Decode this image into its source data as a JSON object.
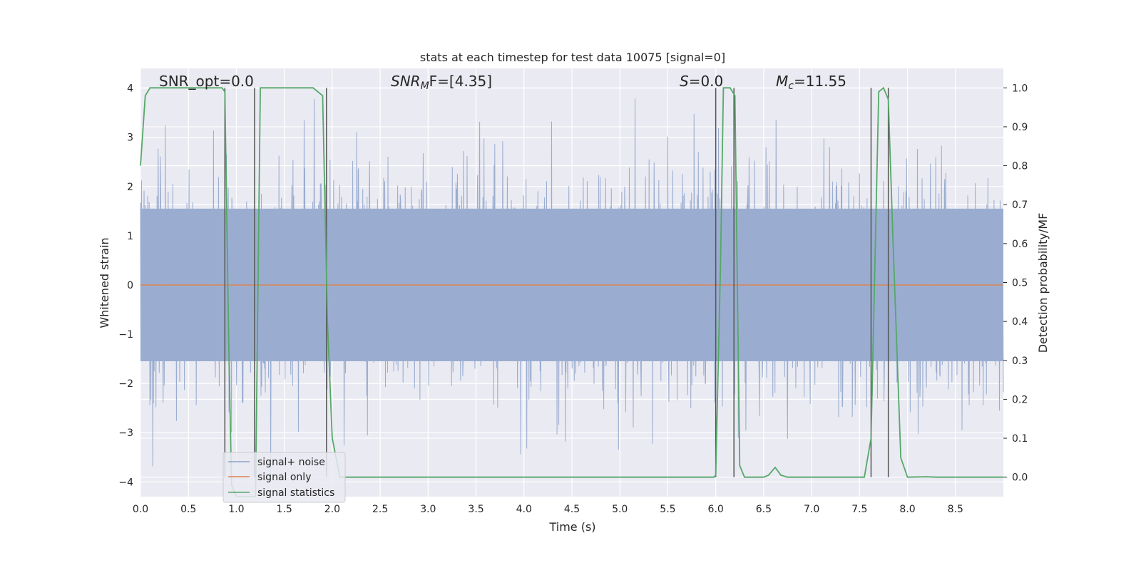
{
  "chart_data": {
    "type": "line",
    "title": "stats at each timestep for test data 10075 [signal=0]",
    "xlabel": "Time (s)",
    "ylabel": "Whitened strain",
    "ylabel_right": "Detection probability/MF",
    "xlim": [
      0.0,
      9.0
    ],
    "ylim": [
      -4.3,
      4.4
    ],
    "ylim_right": [
      -0.05,
      1.05
    ],
    "x_ticks": [
      "0.0",
      "0.5",
      "1.0",
      "1.5",
      "2.0",
      "2.5",
      "3.0",
      "3.5",
      "4.0",
      "4.5",
      "5.0",
      "5.5",
      "6.0",
      "6.5",
      "7.0",
      "7.5",
      "8.0",
      "8.5"
    ],
    "y_ticks": [
      "4",
      "3",
      "2",
      "1",
      "0",
      "−1",
      "−2",
      "−3",
      "−4"
    ],
    "y_ticks_right": [
      "1.0",
      "0.9",
      "0.8",
      "0.7",
      "0.6",
      "0.5",
      "0.4",
      "0.3",
      "0.2",
      "0.1",
      "0.0"
    ],
    "annotations": {
      "snr_opt": "SNR_opt=0.0",
      "snr_mf_main": "SNR",
      "snr_mf_sub": "M",
      "snr_mf_rest": "F=[4.35]",
      "s_label": "S",
      "s_value": "=0.0",
      "mc_label": "M",
      "mc_sub": "c",
      "mc_value": "=11.55"
    },
    "legend": {
      "placement": "bottom-left",
      "entries": [
        {
          "label": "signal+ noise",
          "color": "#4c72b0"
        },
        {
          "label": "signal only",
          "color": "#dd8452"
        },
        {
          "label": "signal statistics",
          "color": "#55a868"
        }
      ]
    },
    "series": [
      {
        "name": "signal+ noise",
        "axis": "left",
        "color": "#4c72b0",
        "description": "whitened noise, std ~1.1, t from 0 to 9 s"
      },
      {
        "name": "signal only",
        "axis": "left",
        "color": "#dd8452",
        "x": [
          0.0,
          9.0
        ],
        "y": [
          0.0,
          0.0
        ]
      },
      {
        "name": "signal statistics",
        "axis": "right",
        "color": "#55a868",
        "x": [
          0.0,
          0.05,
          0.1,
          0.85,
          0.88,
          0.92,
          0.95,
          1.0,
          1.05,
          1.2,
          1.25,
          1.8,
          1.9,
          1.95,
          2.0,
          2.08,
          2.2,
          5.8,
          5.98,
          6.0,
          6.05,
          6.08,
          6.15,
          6.2,
          6.25,
          6.3,
          6.5,
          6.55,
          6.62,
          6.68,
          6.75,
          7.2,
          7.55,
          7.62,
          7.7,
          7.75,
          7.8,
          7.85,
          7.93,
          8.0,
          8.2,
          8.3,
          9.0
        ],
        "y": [
          0.8,
          0.98,
          1.0,
          1.0,
          0.99,
          0.35,
          -0.02,
          -0.05,
          -0.05,
          -0.05,
          1.0,
          1.0,
          0.98,
          0.4,
          0.1,
          0.0,
          0.0,
          0.0,
          0.0,
          0.005,
          0.55,
          1.0,
          1.0,
          0.98,
          0.03,
          0.0,
          0.0,
          0.005,
          0.025,
          0.005,
          0.0,
          0.0,
          0.0,
          0.1,
          0.99,
          1.0,
          0.97,
          0.6,
          0.05,
          0.0,
          0.001,
          0.0,
          0.0
        ]
      }
    ],
    "vertical_lines": [
      0.88,
      1.19,
      1.94,
      6.0,
      6.19,
      7.62,
      7.8
    ],
    "noise_seed": 10075
  }
}
